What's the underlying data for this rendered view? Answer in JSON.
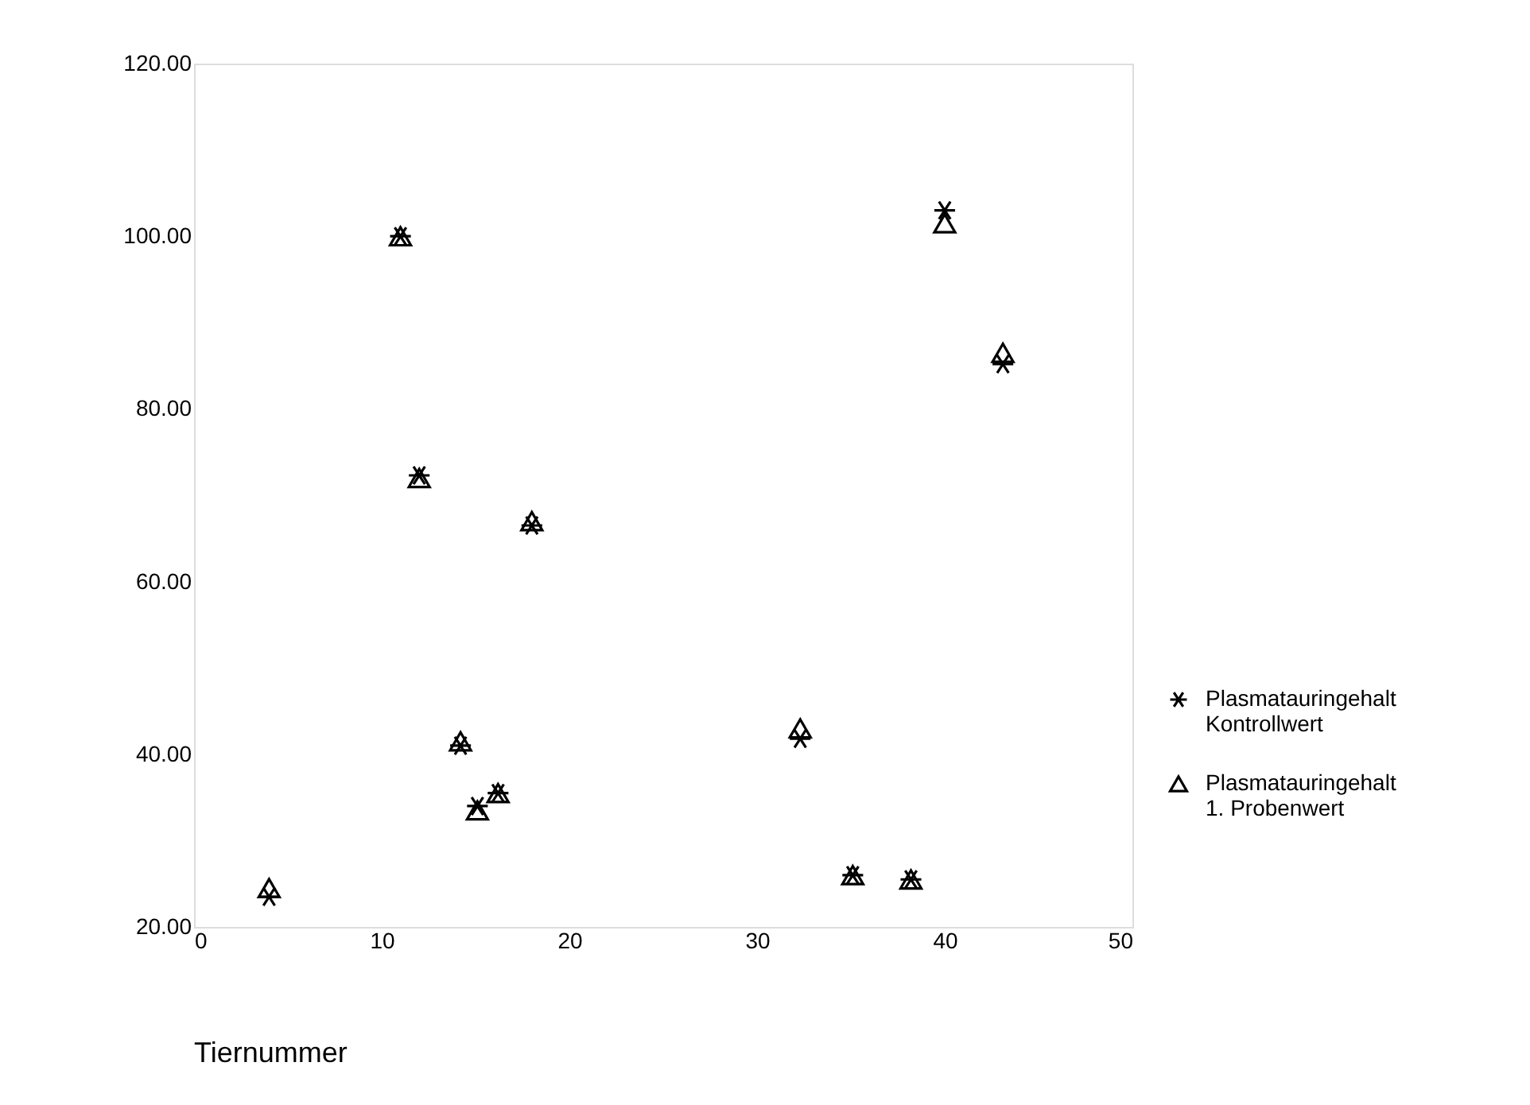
{
  "chart_data": {
    "type": "scatter",
    "xlabel": "Tiernummer",
    "x": [
      4,
      11,
      12,
      14.2,
      15.1,
      16.2,
      18,
      32.3,
      35.1,
      38.2,
      40,
      43.1
    ],
    "series": [
      {
        "name": "Plasmatauringehalt Kontrollwert",
        "color": "#000000",
        "marker": "cross",
        "values": [
          23.5,
          100,
          72.3,
          41,
          34,
          35.5,
          66.5,
          41.8,
          26,
          25.5,
          103,
          85.2
        ]
      },
      {
        "name": "Plasmatauringehalt 1. Probenwert",
        "color": "#000000",
        "marker": "triangle",
        "values": [
          24.5,
          100,
          72,
          41.5,
          33.5,
          35.5,
          67,
          43,
          26,
          25.5,
          101.5,
          86.5
        ]
      }
    ],
    "xlim": [
      0,
      50
    ],
    "xticks": [
      0,
      10,
      20,
      30,
      40,
      50
    ],
    "ylim": [
      20,
      120
    ],
    "yticks": [
      {
        "value": 20,
        "label": "20.00"
      },
      {
        "value": 40,
        "label": "40.00"
      },
      {
        "value": 60,
        "label": "60.00"
      },
      {
        "value": 80,
        "label": "80.00"
      },
      {
        "value": 100,
        "label": "100.00"
      },
      {
        "value": 120,
        "label": "120.00"
      }
    ],
    "grid": false,
    "legend": "right"
  }
}
